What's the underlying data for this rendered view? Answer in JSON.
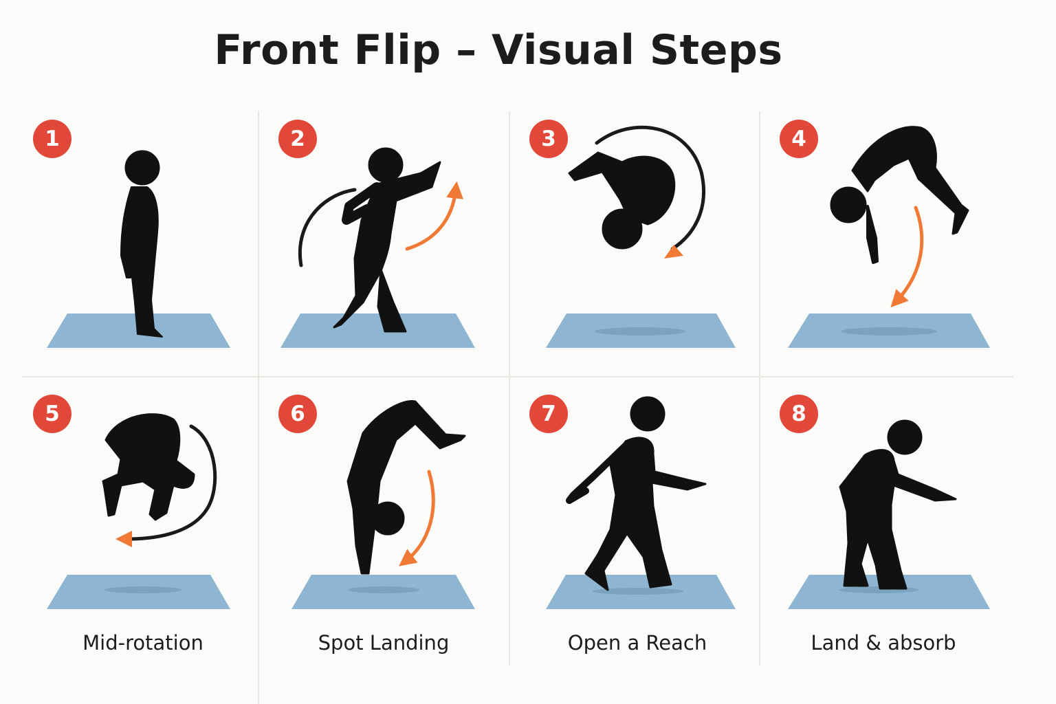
{
  "title": "Front Flip – Visual Steps",
  "colors": {
    "background": "#fbfbf9",
    "badge": "#e2483a",
    "figure": "#111111",
    "mat": "#8eb6d2",
    "arrow_motion": "#f07a35",
    "arrow_rotation": "#1a1a1a",
    "divider": "#e6e6e3"
  },
  "steps": [
    {
      "number": "1",
      "caption": ""
    },
    {
      "number": "2",
      "caption": ""
    },
    {
      "number": "3",
      "caption": ""
    },
    {
      "number": "4",
      "caption": ""
    },
    {
      "number": "5",
      "caption": "Mid-rotation"
    },
    {
      "number": "6",
      "caption": "Spot Landing"
    },
    {
      "number": "7",
      "caption": "Open a Reach"
    },
    {
      "number": "8",
      "caption": "Land & absorb"
    }
  ]
}
